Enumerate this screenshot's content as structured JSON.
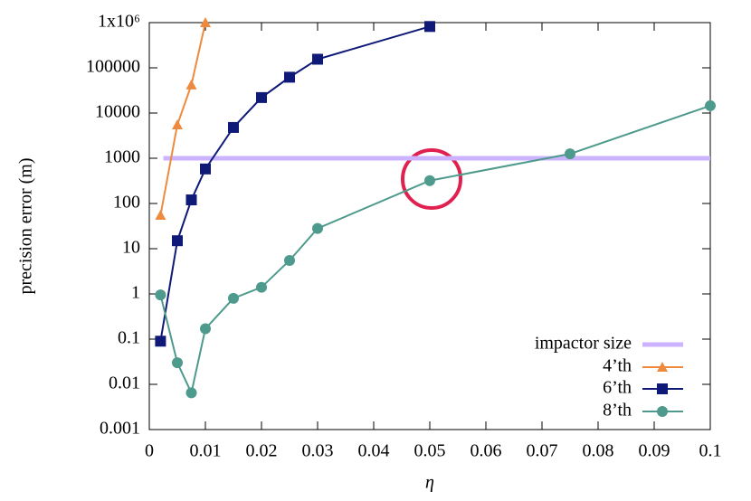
{
  "chart_data": {
    "type": "line",
    "xlabel": "η",
    "ylabel": "precision error (m)",
    "xlim": [
      0,
      0.1
    ],
    "xticks": [
      0,
      0.01,
      0.02,
      0.03,
      0.04,
      0.05,
      0.06,
      0.07,
      0.08,
      0.09,
      0.1
    ],
    "ylim": [
      0.001,
      1000000
    ],
    "log_y": true,
    "yticks": [
      0.001,
      0.01,
      0.1,
      1,
      10,
      100,
      1000,
      10000,
      100000,
      {
        "value": 1000000,
        "label": "1x10⁶"
      }
    ],
    "legend": "lower right",
    "series": [
      {
        "name": "impactor size",
        "color": "#ccb3ff",
        "marker": "none",
        "x": [
          0.0025,
          0.1
        ],
        "values": [
          1000,
          1000
        ]
      },
      {
        "name": "4’th",
        "color": "#ee8a3e",
        "marker": "triangle",
        "x": [
          0.002,
          0.005,
          0.0075,
          0.01
        ],
        "values": [
          55,
          5500,
          42000,
          1000000
        ]
      },
      {
        "name": "6’th",
        "color": "#0f1a78",
        "marker": "square",
        "x": [
          0.002,
          0.005,
          0.0075,
          0.01,
          0.015,
          0.02,
          0.025,
          0.03,
          0.05
        ],
        "values": [
          0.09,
          15,
          120,
          580,
          4800,
          22000,
          62000,
          155000,
          820000
        ]
      },
      {
        "name": "8’th",
        "color": "#4e9a8c",
        "marker": "circle",
        "x": [
          0.002,
          0.005,
          0.0075,
          0.01,
          0.015,
          0.02,
          0.025,
          0.03,
          0.05,
          0.075,
          0.1
        ],
        "values": [
          0.95,
          0.03,
          0.0065,
          0.17,
          0.8,
          1.4,
          5.5,
          28,
          320,
          1250,
          14500
        ]
      }
    ]
  }
}
